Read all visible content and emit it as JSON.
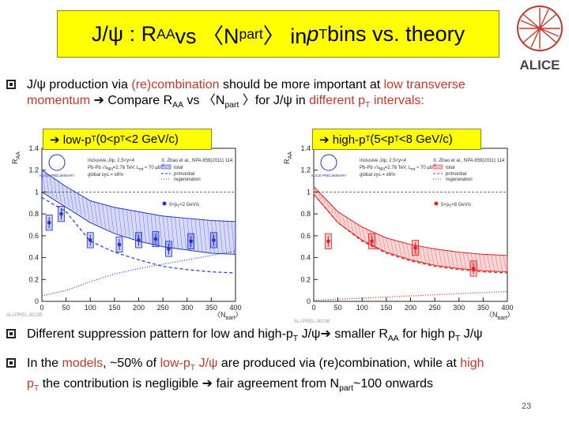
{
  "title": {
    "prefix": "J/ψ : R",
    "raa_sub": "AA",
    "vs": " vs 〈N",
    "npart_sub": "part",
    "close": "〉 in ",
    "p": "p",
    "t_sub": "T",
    "tail": " bins vs. theory"
  },
  "logo": {
    "text": "ALICE",
    "icon": "alice-star-logo"
  },
  "bullet1": {
    "line1_a": "J/ψ production via ",
    "line1_b": "(re)combination",
    "line1_c": " should be more  important at ",
    "line1_d": "low transverse",
    "line2_a": "momentum",
    "arrow": "➔",
    "line2_b": " Compare R",
    "raa_sub": "AA",
    "line2_c": " vs 〈N",
    "npart_sub": "part",
    "line2_d": " 〉for J/ψ in ",
    "line2_e": "different p",
    "t_sub": "T",
    "line2_f": " intervals:"
  },
  "tag_low": {
    "text": "➔ low-p",
    "sub": "T",
    "rest": "  (0<p",
    "sub2": "T",
    "rest2": "<2 GeV/c)"
  },
  "tag_high": {
    "text": "➔ high-p",
    "sub": "T",
    "rest": "  (5<p",
    "sub2": "T",
    "rest2": "<8 GeV/c)"
  },
  "bullet2": {
    "a": "Different suppression pattern for low and high-p",
    "t": "T",
    "b": " J/ψ",
    "arrow": "➔",
    "c": " smaller R",
    "aa": "AA",
    "d": " for high p",
    "t2": "T",
    "e": " J/ψ"
  },
  "bullet3": {
    "a": "In the ",
    "b": "models",
    "c": ", ~50% of ",
    "d": "low-p",
    "t": "T",
    "e": " J/ψ",
    "f": " are produced via (re)combination, while at ",
    "g": "high",
    "h": "p",
    "t2": "T",
    "i": " the contribution is negligible ",
    "arrow": "➔",
    "j": " fair agreement from N",
    "part": "part",
    "k": "~100 onwards"
  },
  "page_number": "23",
  "chart_data": [
    {
      "type": "scatter",
      "ylabel": "R",
      "ylabel_sub": "AA",
      "xlabel": "〈N",
      "xlabel_sub": "part",
      "xlabel_tail": "〉",
      "xlim": [
        0,
        400
      ],
      "ylim": [
        0,
        1.4
      ],
      "yticks": [
        "0",
        "0.2",
        "0.4",
        "0.6",
        "0.8",
        "1",
        "1.2",
        "1.4"
      ],
      "xticks": [
        "0",
        "50",
        "100",
        "150",
        "200",
        "250",
        "300",
        "350",
        "400"
      ],
      "legend": {
        "line1": "Inclusive J/ψ, 2.5<y<4",
        "line2": "Pb-Pb √s",
        "line2b": "NN",
        "line2c": "=2.76 TeV, L",
        "line2d": "int",
        "line2e": " ≈ 70 μb",
        "line2f": "-1",
        "line3": "global sys.= ±6%",
        "ref": "X. Zhao et al., NPA 859(2011) 114",
        "t1": "total",
        "t2": "primordial",
        "t3": "regeneration",
        "series": "0<p",
        "series_sub": "T",
        "series_tail": "<2 GeV/c"
      },
      "preliminary": "ALICE PRELIMINARY",
      "ali_tag": "ALI-PREL-30135",
      "color": "#2233cc",
      "x": [
        15,
        40,
        100,
        160,
        200,
        235,
        262,
        308,
        355
      ],
      "y": [
        0.72,
        0.8,
        0.56,
        0.52,
        0.56,
        0.57,
        0.48,
        0.55,
        0.56
      ],
      "band": {
        "upper": [
          1.2,
          1.05,
          0.92,
          0.86,
          0.82,
          0.78,
          0.76,
          0.74,
          0.73
        ],
        "lower": [
          1.0,
          0.86,
          0.72,
          0.62,
          0.55,
          0.5,
          0.47,
          0.44,
          0.43
        ]
      },
      "primordial": [
        0.95,
        0.82,
        0.55,
        0.45,
        0.38,
        0.32,
        0.29,
        0.27,
        0.26
      ],
      "regeneration": [
        0.05,
        0.1,
        0.18,
        0.25,
        0.3,
        0.34,
        0.38,
        0.42,
        0.46
      ]
    },
    {
      "type": "scatter",
      "ylabel": "R",
      "ylabel_sub": "AA",
      "xlabel": "〈N",
      "xlabel_sub": "part",
      "xlabel_tail": "〉",
      "xlim": [
        0,
        400
      ],
      "ylim": [
        0,
        1.4
      ],
      "yticks": [
        "0",
        "0.2",
        "0.4",
        "0.6",
        "0.8",
        "1",
        "1.2",
        "1.4"
      ],
      "xticks": [
        "0",
        "50",
        "100",
        "150",
        "200",
        "250",
        "300",
        "350",
        "400"
      ],
      "legend": {
        "line1": "Inclusive J/ψ, 2.5<y<4",
        "line2": "Pb-Pb √s",
        "line2b": "NN",
        "line2c": "=2.76 TeV, L",
        "line2d": "int",
        "line2e": " ≈ 70 μb",
        "line2f": "-1",
        "line3": "global sys.= ±6%",
        "ref": "X. Zhao et al., NPA 859(2011) 114",
        "t1": "total",
        "t2": "primordial",
        "t3": "regeneration",
        "series": "5<p",
        "series_sub": "T",
        "series_tail": "<8 GeV/c"
      },
      "preliminary": "ALICE PRELIMINARY",
      "ali_tag": "ALI-PREL-30136",
      "color": "#dd2222",
      "x": [
        30,
        120,
        210,
        330
      ],
      "y": [
        0.55,
        0.55,
        0.49,
        0.3
      ],
      "band": {
        "upper": [
          1.05,
          0.82,
          0.68,
          0.58,
          0.52,
          0.48,
          0.45,
          0.43,
          0.42
        ],
        "lower": [
          0.98,
          0.72,
          0.56,
          0.45,
          0.38,
          0.33,
          0.3,
          0.28,
          0.27
        ]
      },
      "primordial": [
        0.98,
        0.72,
        0.55,
        0.44,
        0.37,
        0.32,
        0.29,
        0.27,
        0.26
      ],
      "regeneration": [
        0.01,
        0.02,
        0.03,
        0.04,
        0.05,
        0.06,
        0.07,
        0.08,
        0.09
      ]
    }
  ]
}
